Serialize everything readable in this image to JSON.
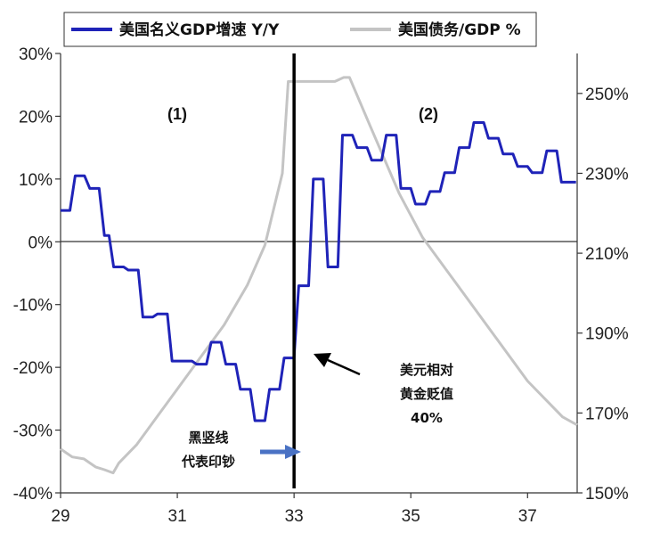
{
  "chart_data": {
    "type": "line",
    "legend": [
      {
        "label": "美国名义GDP增速 Y/Y",
        "color": "#1f23b8"
      },
      {
        "label": "美国债务/GDP %",
        "color": "#c4c4c4"
      }
    ],
    "x_ticks": [
      "29",
      "31",
      "33",
      "35",
      "37"
    ],
    "x_range": [
      29,
      37.85
    ],
    "left_ticks": [
      "30%",
      "20%",
      "10%",
      "0%",
      "-10%",
      "-20%",
      "-30%",
      "-40%"
    ],
    "left_range": [
      -40,
      30
    ],
    "right_ticks": [
      "250%",
      "230%",
      "210%",
      "190%",
      "170%",
      "150%"
    ],
    "right_range": [
      150,
      260
    ],
    "series": [
      {
        "name": "美国名义GDP增速 Y/Y",
        "axis": "left",
        "color": "#1f23b8",
        "x": [
          29.0,
          29.08,
          29.16,
          29.25,
          29.33,
          29.41,
          29.5,
          29.58,
          29.66,
          29.75,
          29.83,
          29.91,
          30.0,
          30.08,
          30.16,
          30.25,
          30.33,
          30.41,
          30.5,
          30.58,
          30.66,
          30.75,
          30.83,
          30.91,
          31.0,
          31.08,
          31.16,
          31.25,
          31.33,
          31.41,
          31.5,
          31.58,
          31.66,
          31.75,
          31.83,
          31.91,
          32.0,
          32.08,
          32.16,
          32.25,
          32.33,
          32.41,
          32.5,
          32.58,
          32.66,
          32.75,
          32.83,
          32.91,
          33.0,
          33.08,
          33.16,
          33.25,
          33.33,
          33.41,
          33.5,
          33.58,
          33.66,
          33.75,
          33.83,
          33.91,
          34.0,
          34.08,
          34.16,
          34.25,
          34.33,
          34.41,
          34.5,
          34.58,
          34.66,
          34.75,
          34.83,
          34.91,
          35.0,
          35.08,
          35.16,
          35.25,
          35.33,
          35.41,
          35.5,
          35.58,
          35.66,
          35.75,
          35.83,
          35.91,
          36.0,
          36.08,
          36.16,
          36.25,
          36.33,
          36.41,
          36.5,
          36.58,
          36.66,
          36.75,
          36.83,
          36.91,
          37.0,
          37.08,
          37.16,
          37.25,
          37.33,
          37.41,
          37.5,
          37.58,
          37.66,
          37.75,
          37.83
        ],
        "values": [
          5,
          5,
          5,
          10.5,
          10.5,
          10.5,
          8.5,
          8.5,
          8.5,
          1,
          1,
          -4,
          -4,
          -4,
          -4.5,
          -4.5,
          -4.5,
          -12,
          -12,
          -12,
          -11.5,
          -11.5,
          -11.5,
          -19,
          -19,
          -19,
          -19,
          -19,
          -19.5,
          -19.5,
          -19.5,
          -16,
          -16,
          -16,
          -19.5,
          -19.5,
          -19.5,
          -23.5,
          -23.5,
          -23.5,
          -28.5,
          -28.5,
          -28.5,
          -23.5,
          -23.5,
          -23.5,
          -18.5,
          -18.5,
          -18.5,
          -7,
          -7,
          -7,
          10,
          10,
          10,
          -4,
          -4,
          -4,
          17,
          17,
          17,
          15,
          15,
          15,
          13,
          13,
          13,
          17,
          17,
          17,
          8.5,
          8.5,
          8.5,
          6,
          6,
          6,
          8,
          8,
          8,
          11,
          11,
          11,
          15,
          15,
          15,
          19,
          19,
          19,
          16.5,
          16.5,
          16.5,
          14,
          14,
          14,
          12,
          12,
          12,
          11,
          11,
          11,
          14.5,
          14.5,
          14.5,
          9.5,
          9.5,
          9.5,
          9.5
        ]
      },
      {
        "name": "美国债务/GDP %",
        "axis": "right",
        "color": "#c4c4c4",
        "x": [
          29.0,
          29.2,
          29.4,
          29.6,
          29.75,
          29.9,
          30.0,
          30.3,
          30.6,
          31.0,
          31.4,
          31.8,
          32.2,
          32.5,
          32.8,
          32.9,
          33.3,
          33.7,
          33.85,
          33.95,
          34.3,
          34.8,
          35.2,
          35.8,
          36.4,
          37.0,
          37.6,
          37.85
        ],
        "values": [
          161,
          159,
          158.5,
          156.5,
          155.8,
          155,
          157.5,
          162,
          168,
          176,
          184,
          192,
          202,
          212,
          230,
          253,
          253,
          253,
          254,
          254,
          242,
          225,
          214,
          202,
          190,
          178,
          169,
          167
        ]
      }
    ],
    "vline_x": 33.0,
    "annotations": {
      "region1": "(1)",
      "region2": "(2)",
      "devalue_line1": "美元相对",
      "devalue_line2": "黄金贬值",
      "devalue_line3": "40%",
      "print_line1": "黑竖线",
      "print_line2": "代表印钞"
    }
  }
}
